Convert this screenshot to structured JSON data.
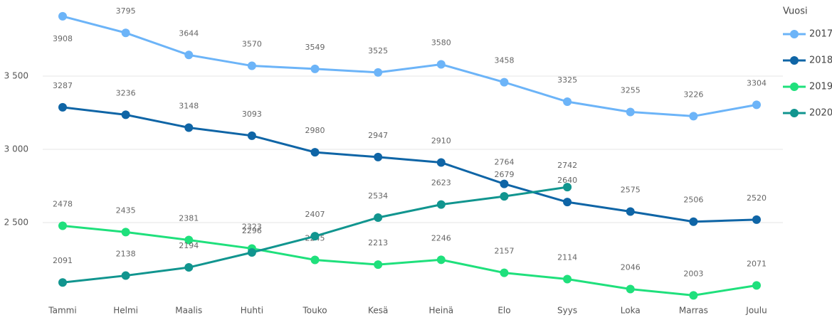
{
  "chart_data": {
    "type": "line",
    "categories": [
      "Tammi",
      "Helmi",
      "Maalis",
      "Huhti",
      "Touko",
      "Kesä",
      "Heinä",
      "Elo",
      "Syys",
      "Loka",
      "Marras",
      "Joulu"
    ],
    "legend_title": "Vuosi",
    "series": [
      {
        "name": "2017",
        "color": "#6cb4f8",
        "values": [
          3908,
          3795,
          3644,
          3570,
          3549,
          3525,
          3580,
          3458,
          3325,
          3255,
          3226,
          3304
        ]
      },
      {
        "name": "2018",
        "color": "#0f65a6",
        "values": [
          3287,
          3236,
          3148,
          3093,
          2980,
          2947,
          2910,
          2764,
          2640,
          2575,
          2506,
          2520
        ]
      },
      {
        "name": "2019",
        "color": "#1fe07c",
        "values": [
          2478,
          2435,
          2381,
          2323,
          2245,
          2213,
          2246,
          2157,
          2114,
          2046,
          2003,
          2071
        ]
      },
      {
        "name": "2020",
        "color": "#11958f",
        "values": [
          2091,
          2138,
          2194,
          2296,
          2407,
          2534,
          2623,
          2679,
          2742,
          null,
          null,
          null
        ]
      }
    ],
    "ylim": [
      1932,
      3995
    ],
    "yticks": [
      {
        "value": 2500,
        "label": "2 500"
      },
      {
        "value": 3000,
        "label": "3 000"
      },
      {
        "value": 3500,
        "label": "3 500"
      }
    ],
    "grid": true,
    "legend": "right"
  }
}
